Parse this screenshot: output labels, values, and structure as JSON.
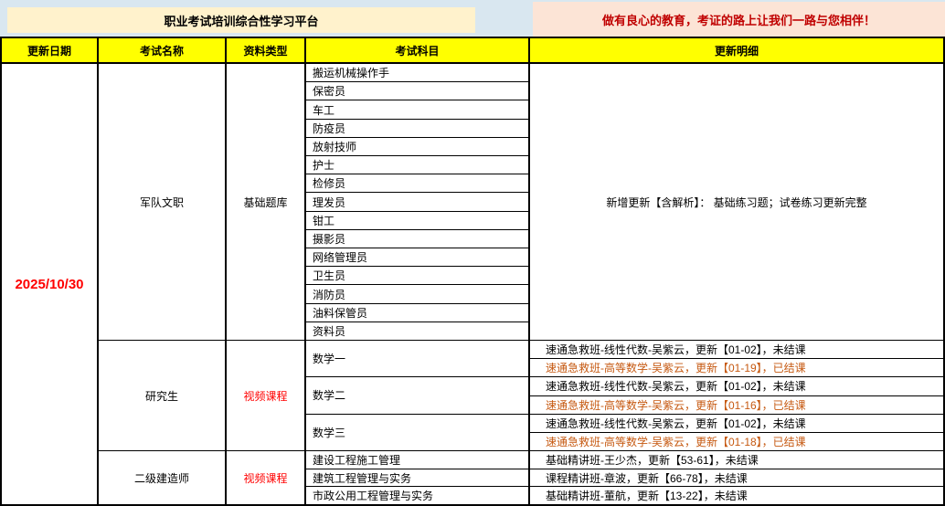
{
  "banner": {
    "platform_title": "职业考试培训综合性学习平台",
    "slogan": "做有良心的教育，考证的路上让我们一路与您相伴！",
    "slogan_color": "#C00000"
  },
  "colors": {
    "banner_blue": "#D9E7F0",
    "title_bg": "#FFF2CC",
    "slogan_bg": "#FCE4D6",
    "header_yellow": "#FFFF00",
    "highlight_red": "#FF0000",
    "finished_orange": "#C65911",
    "text_black": "#000000"
  },
  "header": {
    "col_date": "更新日期",
    "col_exam": "考试名称",
    "col_type": "资料类型",
    "col_subject": "考试科目",
    "col_detail": "更新明细"
  },
  "update_date": {
    "text": "2025/10/30",
    "color": "#FF0000"
  },
  "sections": {
    "0": {
      "exam_name": "军队文职",
      "material_type": "基础题库",
      "material_color": "#000000",
      "subjects": [
        "搬运机械操作手",
        "保密员",
        "车工",
        "防疫员",
        "放射技师",
        "护士",
        "检修员",
        "理发员",
        "钳工",
        "摄影员",
        "网络管理员",
        "卫生员",
        "消防员",
        "油料保管员",
        "资料员"
      ],
      "detail": "新增更新【含解析】： 基础练习题；试卷练习更新完整"
    },
    "1": {
      "exam_name": "研究生",
      "material_type": "视频课程",
      "material_color": "#FF0000",
      "courses": [
        {
          "name": "数学一",
          "details": [
            {
              "text": "速通急救班-线性代数-吴紫云，更新【01-02】，未结课",
              "color": "#000000"
            },
            {
              "text": "速通急救班-高等数学-吴紫云，更新【01-19】，已结课",
              "color": "#C65911"
            }
          ]
        },
        {
          "name": "数学二",
          "details": [
            {
              "text": "速通急救班-线性代数-吴紫云，更新【01-02】，未结课",
              "color": "#000000"
            },
            {
              "text": "速通急救班-高等数学-吴紫云，更新【01-16】，已结课",
              "color": "#C65911"
            }
          ]
        },
        {
          "name": "数学三",
          "details": [
            {
              "text": "速通急救班-线性代数-吴紫云，更新【01-02】，未结课",
              "color": "#000000"
            },
            {
              "text": "速通急救班-高等数学-吴紫云，更新【01-18】，已结课",
              "color": "#C65911"
            }
          ]
        }
      ]
    },
    "2": {
      "exam_name": "二级建造师",
      "material_type": "视频课程",
      "material_color": "#FF0000",
      "courses": [
        {
          "name": "建设工程施工管理",
          "details": [
            {
              "text": "基础精讲班-王少杰，更新【53-61】，未结课",
              "color": "#000000"
            }
          ]
        },
        {
          "name": "建筑工程管理与实务",
          "details": [
            {
              "text": "课程精讲班-章波，更新【66-78】，未结课",
              "color": "#000000"
            }
          ]
        },
        {
          "name": "市政公用工程管理与实务",
          "details": [
            {
              "text": "基础精讲班-董航，更新【13-22】，未结课",
              "color": "#000000"
            }
          ]
        }
      ]
    }
  }
}
